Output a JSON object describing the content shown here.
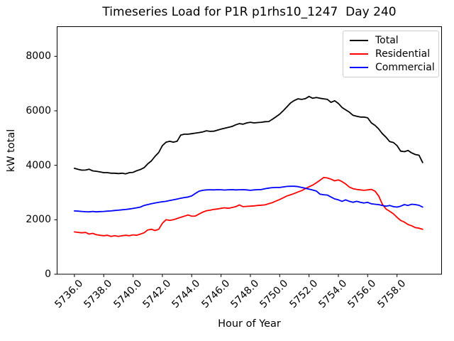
{
  "chart_data": {
    "type": "line",
    "title": "Timeseries Load for P1R p1rhs10_1247  Day 240",
    "xlabel": "Hour of Year",
    "ylabel": "kW total",
    "grid": false,
    "legend_position": "upper right",
    "xlim": [
      5734.82,
      5761.04
    ],
    "ylim": [
      0,
      9090
    ],
    "x_start": 5736.0,
    "x_step": 0.25,
    "x_ticks": {
      "values": [
        5736,
        5738,
        5740,
        5742,
        5744,
        5746,
        5748,
        5750,
        5752,
        5754,
        5756,
        5758
      ],
      "labels": [
        "5736.0",
        "5738.0",
        "5740.0",
        "5742.0",
        "5744.0",
        "5746.0",
        "5748.0",
        "5750.0",
        "5752.0",
        "5754.0",
        "5756.0",
        "5758.0"
      ]
    },
    "y_ticks": {
      "values": [
        0,
        2000,
        4000,
        6000,
        8000
      ],
      "labels": [
        "0",
        "2000",
        "4000",
        "6000",
        "8000"
      ]
    },
    "series": [
      {
        "name": "Total",
        "color": "#000000",
        "values": [
          3890,
          3850,
          3820,
          3825,
          3855,
          3795,
          3780,
          3755,
          3730,
          3730,
          3710,
          3710,
          3695,
          3710,
          3685,
          3730,
          3740,
          3800,
          3845,
          3910,
          4050,
          4160,
          4330,
          4470,
          4720,
          4850,
          4880,
          4850,
          4880,
          5110,
          5140,
          5140,
          5160,
          5180,
          5200,
          5225,
          5265,
          5245,
          5250,
          5290,
          5330,
          5360,
          5395,
          5425,
          5485,
          5530,
          5510,
          5555,
          5580,
          5555,
          5570,
          5580,
          5600,
          5605,
          5690,
          5780,
          5880,
          6010,
          6150,
          6290,
          6380,
          6440,
          6420,
          6445,
          6525,
          6460,
          6490,
          6460,
          6440,
          6420,
          6310,
          6370,
          6270,
          6125,
          6035,
          5950,
          5835,
          5800,
          5770,
          5770,
          5740,
          5555,
          5465,
          5335,
          5160,
          5030,
          4870,
          4835,
          4720,
          4520,
          4500,
          4545,
          4455,
          4395,
          4370,
          4100
        ]
      },
      {
        "name": "Residential",
        "color": "#ff0000",
        "values": [
          1555,
          1535,
          1520,
          1535,
          1475,
          1500,
          1450,
          1430,
          1415,
          1430,
          1390,
          1415,
          1390,
          1415,
          1430,
          1415,
          1445,
          1430,
          1475,
          1520,
          1625,
          1650,
          1605,
          1650,
          1870,
          2000,
          1975,
          2000,
          2045,
          2090,
          2130,
          2175,
          2130,
          2135,
          2210,
          2280,
          2330,
          2350,
          2380,
          2395,
          2420,
          2440,
          2420,
          2450,
          2480,
          2545,
          2480,
          2490,
          2500,
          2510,
          2525,
          2535,
          2545,
          2590,
          2630,
          2690,
          2745,
          2810,
          2875,
          2920,
          2965,
          3020,
          3070,
          3140,
          3210,
          3270,
          3360,
          3450,
          3550,
          3535,
          3490,
          3430,
          3465,
          3400,
          3315,
          3200,
          3140,
          3115,
          3095,
          3080,
          3095,
          3115,
          3050,
          2875,
          2570,
          2395,
          2310,
          2220,
          2090,
          1975,
          1915,
          1825,
          1780,
          1710,
          1690,
          1650
        ]
      },
      {
        "name": "Commercial",
        "color": "#0000ff",
        "values": [
          2325,
          2315,
          2305,
          2295,
          2290,
          2305,
          2290,
          2300,
          2305,
          2315,
          2325,
          2340,
          2350,
          2365,
          2375,
          2395,
          2415,
          2440,
          2465,
          2525,
          2555,
          2590,
          2615,
          2640,
          2660,
          2675,
          2705,
          2730,
          2760,
          2790,
          2815,
          2835,
          2875,
          2965,
          3050,
          3080,
          3095,
          3100,
          3095,
          3105,
          3100,
          3090,
          3100,
          3105,
          3095,
          3100,
          3105,
          3095,
          3080,
          3095,
          3105,
          3110,
          3140,
          3160,
          3180,
          3185,
          3185,
          3205,
          3225,
          3230,
          3230,
          3215,
          3185,
          3155,
          3125,
          3090,
          3055,
          2940,
          2920,
          2905,
          2835,
          2765,
          2730,
          2675,
          2730,
          2675,
          2640,
          2675,
          2640,
          2615,
          2640,
          2585,
          2570,
          2555,
          2525,
          2500,
          2525,
          2480,
          2465,
          2500,
          2555,
          2525,
          2570,
          2555,
          2530,
          2465
        ]
      }
    ]
  }
}
